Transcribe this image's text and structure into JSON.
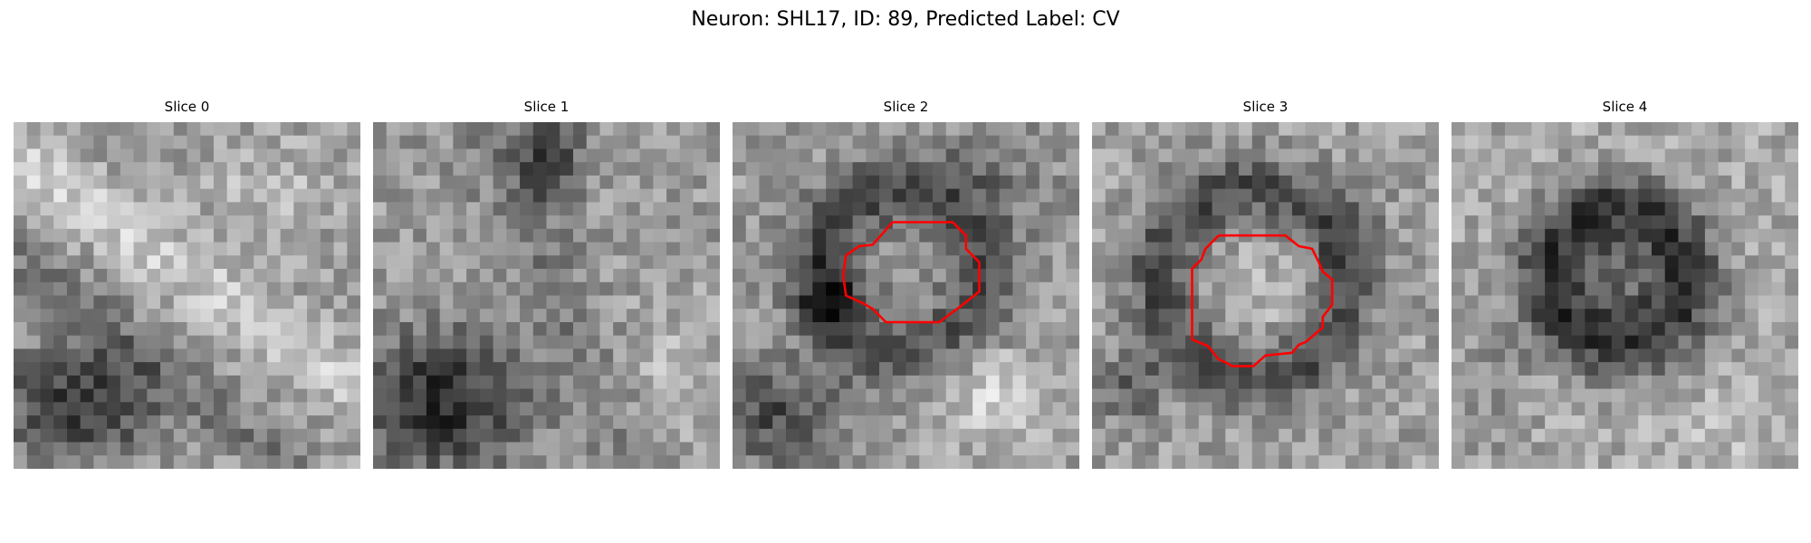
{
  "figure": {
    "title": "Neuron: SHL17, ID: 89, Predicted Label: CV"
  },
  "colors": {
    "contour": "#ff0000",
    "background": "#ffffff"
  },
  "panels": [
    {
      "title": "Slice 0",
      "has_contour": false
    },
    {
      "title": "Slice 1",
      "has_contour": false
    },
    {
      "title": "Slice 2",
      "has_contour": true
    },
    {
      "title": "Slice 3",
      "has_contour": true
    },
    {
      "title": "Slice 4",
      "has_contour": false
    }
  ]
}
